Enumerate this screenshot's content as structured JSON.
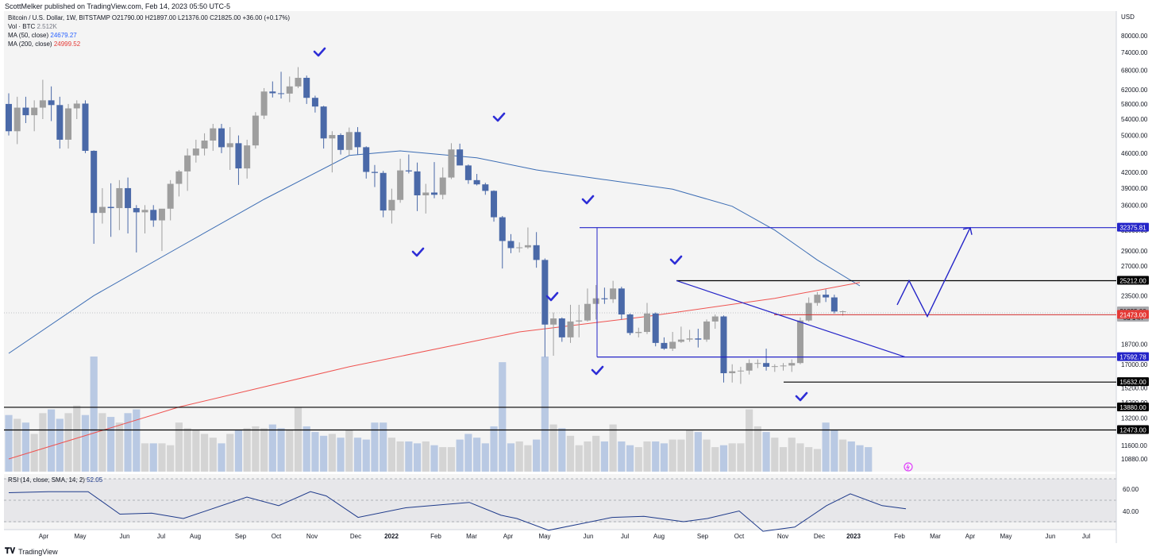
{
  "header": {
    "published": "ScottMelker published on TradingView.com, Feb 14, 2023 05:50 UTC-5"
  },
  "legend": {
    "symbol": "Bitcoin / U.S. Dollar, 1W, BITSTAMP",
    "ohlc": "O21790.00 H21897.00 L21376.00 C21825.00 +36.00 (+0.17%)",
    "vol_label": "Vol · BTC",
    "vol_value": "2.512K",
    "ma50_label": "MA (50, close)",
    "ma50_value": "24679.27",
    "ma200_label": "MA (200, close)",
    "ma200_value": "24999.52"
  },
  "rsi": {
    "label": "RSI (14, close, SMA, 14, 2)",
    "value": "52.05",
    "ticks": [
      "60.00",
      "40.00"
    ]
  },
  "footer": {
    "brand": "TradingView"
  },
  "colors": {
    "up": "#9e9e9e",
    "down": "#4a69a8",
    "ma50": "#3c6db4",
    "ma200": "#ef5350",
    "drawing": "#2424c8",
    "rsi": "#1e3a8a",
    "bg": "#f4f4f4"
  },
  "chart_data": {
    "type": "candlestick",
    "symbol": "Bitcoin / U.S. Dollar",
    "timeframe": "1W",
    "y_scale": "log",
    "y_axis_unit": "USD",
    "y_ticks": [
      80000,
      74000,
      68000,
      62000,
      58000,
      54000,
      50000,
      46000,
      42000,
      39000,
      36000,
      32000,
      29000,
      27000,
      23500,
      18700,
      17000,
      15200,
      14200,
      13200,
      11600,
      10880
    ],
    "x_tick_labels": [
      "Apr",
      "May",
      "Jun",
      "Jul",
      "Aug",
      "Sep",
      "Oct",
      "Nov",
      "Dec",
      "2022",
      "Feb",
      "Mar",
      "Apr",
      "May",
      "Jun",
      "Jul",
      "Aug",
      "Sep",
      "Oct",
      "Nov",
      "Dec",
      "2023",
      "Feb",
      "Mar",
      "Apr",
      "May",
      "Jun",
      "Jul"
    ],
    "price_labels": [
      {
        "text": "32375.81",
        "style": "blue"
      },
      {
        "text": "25212.00",
        "style": "black"
      },
      {
        "text": "21825.00",
        "style": "gray"
      },
      {
        "text": "5d 14h",
        "style": "gray"
      },
      {
        "text": "21473.00",
        "style": "red"
      },
      {
        "text": "17592.78",
        "style": "blue"
      },
      {
        "text": "15632.00",
        "style": "black"
      },
      {
        "text": "13880.00",
        "style": "black"
      },
      {
        "text": "12473.00",
        "style": "black"
      }
    ],
    "candles": [
      {
        "o": 58000,
        "h": 61000,
        "l": 50000,
        "c": 51000
      },
      {
        "o": 51000,
        "h": 60000,
        "l": 48000,
        "c": 57000
      },
      {
        "o": 57000,
        "h": 60000,
        "l": 53000,
        "c": 55000
      },
      {
        "o": 55000,
        "h": 59000,
        "l": 51000,
        "c": 57000
      },
      {
        "o": 57000,
        "h": 65000,
        "l": 54000,
        "c": 59000
      },
      {
        "o": 59000,
        "h": 63000,
        "l": 53500,
        "c": 57700
      },
      {
        "o": 57700,
        "h": 60000,
        "l": 47000,
        "c": 49000
      },
      {
        "o": 49000,
        "h": 58000,
        "l": 47000,
        "c": 56800
      },
      {
        "o": 56800,
        "h": 59000,
        "l": 54000,
        "c": 58100
      },
      {
        "o": 58100,
        "h": 59000,
        "l": 46000,
        "c": 46500
      },
      {
        "o": 46500,
        "h": 46600,
        "l": 30000,
        "c": 34700
      },
      {
        "o": 34700,
        "h": 39000,
        "l": 33000,
        "c": 35700
      },
      {
        "o": 35700,
        "h": 39900,
        "l": 31000,
        "c": 35500
      },
      {
        "o": 35500,
        "h": 40500,
        "l": 32000,
        "c": 39000
      },
      {
        "o": 39000,
        "h": 41000,
        "l": 31500,
        "c": 35500
      },
      {
        "o": 35500,
        "h": 36000,
        "l": 28800,
        "c": 34800
      },
      {
        "o": 34800,
        "h": 36000,
        "l": 31500,
        "c": 35200
      },
      {
        "o": 35200,
        "h": 36000,
        "l": 32500,
        "c": 33500
      },
      {
        "o": 33500,
        "h": 35000,
        "l": 29000,
        "c": 35400
      },
      {
        "o": 35400,
        "h": 40500,
        "l": 33500,
        "c": 39800
      },
      {
        "o": 39800,
        "h": 42500,
        "l": 37500,
        "c": 42200
      },
      {
        "o": 42200,
        "h": 47000,
        "l": 38500,
        "c": 45500
      },
      {
        "o": 45500,
        "h": 49000,
        "l": 44000,
        "c": 47000
      },
      {
        "o": 47000,
        "h": 50500,
        "l": 45500,
        "c": 48800
      },
      {
        "o": 48800,
        "h": 52800,
        "l": 46500,
        "c": 51700
      },
      {
        "o": 51700,
        "h": 52800,
        "l": 46000,
        "c": 47300
      },
      {
        "o": 47300,
        "h": 52000,
        "l": 42500,
        "c": 48200
      },
      {
        "o": 48200,
        "h": 50000,
        "l": 39600,
        "c": 42800
      },
      {
        "o": 42800,
        "h": 49000,
        "l": 40800,
        "c": 47700
      },
      {
        "o": 47700,
        "h": 55800,
        "l": 47000,
        "c": 54900
      },
      {
        "o": 54900,
        "h": 62500,
        "l": 54000,
        "c": 61500
      },
      {
        "o": 61500,
        "h": 64500,
        "l": 59800,
        "c": 61000
      },
      {
        "o": 61000,
        "h": 67500,
        "l": 59500,
        "c": 60900
      },
      {
        "o": 60900,
        "h": 66000,
        "l": 58500,
        "c": 63000
      },
      {
        "o": 63000,
        "h": 69000,
        "l": 62500,
        "c": 65600
      },
      {
        "o": 65600,
        "h": 66300,
        "l": 58000,
        "c": 59700
      },
      {
        "o": 59700,
        "h": 60300,
        "l": 55700,
        "c": 57300
      },
      {
        "o": 57300,
        "h": 57500,
        "l": 47000,
        "c": 49300
      },
      {
        "o": 49300,
        "h": 51000,
        "l": 42000,
        "c": 50100
      },
      {
        "o": 50100,
        "h": 50500,
        "l": 45700,
        "c": 46700
      },
      {
        "o": 46700,
        "h": 51900,
        "l": 45500,
        "c": 50800
      },
      {
        "o": 50800,
        "h": 52000,
        "l": 45700,
        "c": 47300
      },
      {
        "o": 47300,
        "h": 47500,
        "l": 40800,
        "c": 42100
      },
      {
        "o": 42100,
        "h": 43500,
        "l": 39200,
        "c": 41900
      },
      {
        "o": 41900,
        "h": 42300,
        "l": 34000,
        "c": 35100
      },
      {
        "o": 35100,
        "h": 38900,
        "l": 33000,
        "c": 36900
      },
      {
        "o": 36900,
        "h": 44800,
        "l": 36400,
        "c": 42400
      },
      {
        "o": 42400,
        "h": 45700,
        "l": 41800,
        "c": 42200
      },
      {
        "o": 42200,
        "h": 44000,
        "l": 35000,
        "c": 37700
      },
      {
        "o": 37700,
        "h": 39800,
        "l": 34600,
        "c": 38200
      },
      {
        "o": 38200,
        "h": 44100,
        "l": 37200,
        "c": 37800
      },
      {
        "o": 37800,
        "h": 43000,
        "l": 37000,
        "c": 41000
      },
      {
        "o": 41000,
        "h": 48200,
        "l": 40700,
        "c": 46800
      },
      {
        "o": 46800,
        "h": 48100,
        "l": 43500,
        "c": 43400
      },
      {
        "o": 43400,
        "h": 43600,
        "l": 39800,
        "c": 40500
      },
      {
        "o": 40500,
        "h": 41700,
        "l": 39500,
        "c": 39700
      },
      {
        "o": 39700,
        "h": 40000,
        "l": 37800,
        "c": 38500
      },
      {
        "o": 38500,
        "h": 38600,
        "l": 33300,
        "c": 34000
      },
      {
        "o": 34000,
        "h": 34200,
        "l": 26700,
        "c": 30400
      },
      {
        "o": 30400,
        "h": 31400,
        "l": 28700,
        "c": 29400
      },
      {
        "o": 29400,
        "h": 30200,
        "l": 28800,
        "c": 29500
      },
      {
        "o": 29500,
        "h": 32400,
        "l": 29300,
        "c": 29800
      },
      {
        "o": 29800,
        "h": 31700,
        "l": 26800,
        "c": 27800
      },
      {
        "o": 27800,
        "h": 28000,
        "l": 17600,
        "c": 20500
      },
      {
        "o": 20500,
        "h": 21700,
        "l": 17700,
        "c": 21100
      },
      {
        "o": 21100,
        "h": 21200,
        "l": 18900,
        "c": 19300
      },
      {
        "o": 19300,
        "h": 22500,
        "l": 18800,
        "c": 20800
      },
      {
        "o": 20800,
        "h": 22500,
        "l": 19300,
        "c": 20900
      },
      {
        "o": 20900,
        "h": 24300,
        "l": 20800,
        "c": 22600
      },
      {
        "o": 22600,
        "h": 24700,
        "l": 21000,
        "c": 23200
      },
      {
        "o": 23200,
        "h": 24400,
        "l": 22600,
        "c": 23100
      },
      {
        "o": 23100,
        "h": 25200,
        "l": 22700,
        "c": 24300
      },
      {
        "o": 24300,
        "h": 24500,
        "l": 21000,
        "c": 21500
      },
      {
        "o": 21500,
        "h": 21600,
        "l": 19500,
        "c": 19700
      },
      {
        "o": 19700,
        "h": 20200,
        "l": 19300,
        "c": 19800
      },
      {
        "o": 19800,
        "h": 22700,
        "l": 19600,
        "c": 21600
      },
      {
        "o": 21600,
        "h": 21700,
        "l": 18500,
        "c": 18800
      },
      {
        "o": 18800,
        "h": 19300,
        "l": 18200,
        "c": 18300
      },
      {
        "o": 18300,
        "h": 19800,
        "l": 18100,
        "c": 18900
      },
      {
        "o": 18900,
        "h": 20300,
        "l": 18800,
        "c": 19100
      },
      {
        "o": 19100,
        "h": 20000,
        "l": 18900,
        "c": 19200
      },
      {
        "o": 19200,
        "h": 20100,
        "l": 18400,
        "c": 19100
      },
      {
        "o": 19100,
        "h": 21000,
        "l": 18900,
        "c": 20800
      },
      {
        "o": 20800,
        "h": 21500,
        "l": 20100,
        "c": 21300
      },
      {
        "o": 21300,
        "h": 21400,
        "l": 15600,
        "c": 16300
      },
      {
        "o": 16300,
        "h": 17000,
        "l": 15600,
        "c": 16450
      },
      {
        "o": 16450,
        "h": 16800,
        "l": 15500,
        "c": 16500
      },
      {
        "o": 16500,
        "h": 17400,
        "l": 16200,
        "c": 17100
      },
      {
        "o": 17100,
        "h": 17400,
        "l": 16700,
        "c": 17100
      },
      {
        "o": 17100,
        "h": 18300,
        "l": 16500,
        "c": 16800
      },
      {
        "o": 16800,
        "h": 17000,
        "l": 16400,
        "c": 16850
      },
      {
        "o": 16850,
        "h": 17100,
        "l": 16500,
        "c": 16900
      },
      {
        "o": 16900,
        "h": 17400,
        "l": 16400,
        "c": 17100
      },
      {
        "o": 17100,
        "h": 21200,
        "l": 17000,
        "c": 20900
      },
      {
        "o": 20900,
        "h": 23300,
        "l": 20800,
        "c": 22700
      },
      {
        "o": 22700,
        "h": 23900,
        "l": 22400,
        "c": 23600
      },
      {
        "o": 23600,
        "h": 24200,
        "l": 22800,
        "c": 23300
      },
      {
        "o": 23300,
        "h": 23600,
        "l": 21600,
        "c": 21800
      },
      {
        "o": 21790,
        "h": 21897,
        "l": 21376,
        "c": 21825
      }
    ],
    "volume": [
      3.0,
      2.8,
      2.6,
      2.0,
      3.1,
      3.3,
      2.8,
      3.1,
      3.5,
      3.0,
      6.1,
      3.1,
      2.9,
      2.6,
      3.1,
      3.3,
      1.5,
      1.5,
      1.5,
      1.4,
      2.6,
      2.3,
      2.2,
      2.0,
      1.8,
      1.5,
      2.0,
      2.2,
      2.3,
      2.4,
      2.3,
      2.5,
      2.3,
      2.2,
      3.4,
      2.4,
      2.1,
      1.9,
      2.0,
      1.8,
      2.2,
      1.8,
      1.7,
      2.6,
      2.6,
      1.8,
      1.6,
      1.6,
      1.5,
      1.6,
      1.4,
      1.3,
      1.3,
      1.7,
      2.0,
      1.8,
      1.5,
      2.4,
      5.8,
      1.5,
      1.6,
      1.4,
      1.7,
      6.1,
      2.5,
      2.3,
      1.9,
      1.4,
      1.6,
      1.9,
      1.6,
      2.5,
      1.6,
      1.4,
      1.3,
      1.6,
      1.6,
      1.5,
      1.7,
      1.7,
      2.2,
      2.1,
      1.7,
      1.3,
      1.4,
      1.5,
      1.5,
      3.3,
      2.4,
      2.1,
      1.8,
      1.3,
      1.8,
      1.5,
      1.3,
      1.2,
      2.6,
      2.2,
      1.7,
      1.6,
      1.4,
      1.3
    ],
    "ma50": [
      [
        0,
        17900
      ],
      [
        10,
        23500
      ],
      [
        20,
        29500
      ],
      [
        30,
        37000
      ],
      [
        40,
        45500
      ],
      [
        46,
        46500
      ],
      [
        55,
        45000
      ],
      [
        62,
        42500
      ],
      [
        70,
        40600
      ],
      [
        78,
        38800
      ],
      [
        85,
        35800
      ],
      [
        90,
        32000
      ],
      [
        95,
        27800
      ],
      [
        100,
        24600
      ]
    ],
    "ma200": [
      [
        0,
        10880
      ],
      [
        20,
        13900
      ],
      [
        40,
        16800
      ],
      [
        60,
        19800
      ],
      [
        75,
        21300
      ],
      [
        90,
        23200
      ],
      [
        100,
        25000
      ]
    ],
    "rsi_series": [
      [
        0,
        67
      ],
      [
        5,
        68
      ],
      [
        10,
        68
      ],
      [
        14,
        47
      ],
      [
        18,
        48
      ],
      [
        22,
        43
      ],
      [
        30,
        63
      ],
      [
        34,
        55
      ],
      [
        38,
        68
      ],
      [
        40,
        64
      ],
      [
        44,
        44
      ],
      [
        50,
        53
      ],
      [
        58,
        58
      ],
      [
        62,
        46
      ],
      [
        64,
        43
      ],
      [
        68,
        32
      ],
      [
        72,
        38
      ],
      [
        76,
        44
      ],
      [
        80,
        45
      ],
      [
        85,
        40
      ],
      [
        88,
        43
      ],
      [
        92,
        50
      ],
      [
        95,
        31
      ],
      [
        99,
        35
      ],
      [
        103,
        55
      ],
      [
        106,
        66
      ],
      [
        110,
        55
      ],
      [
        113,
        52
      ]
    ]
  }
}
